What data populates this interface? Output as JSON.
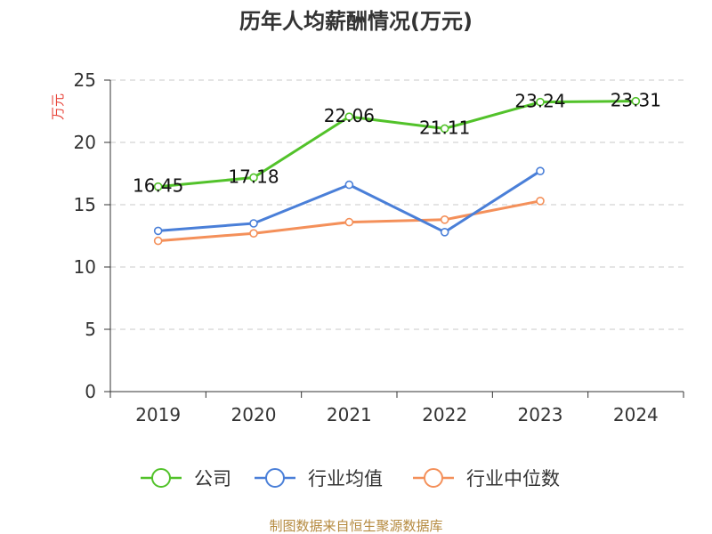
{
  "chart_data": {
    "type": "line",
    "title": "历年人均薪酬情况(万元)",
    "ylabel": "万元",
    "xlabel": "",
    "categories": [
      "2019",
      "2020",
      "2021",
      "2022",
      "2023",
      "2024"
    ],
    "ylim": [
      0,
      25
    ],
    "yticks": [
      0,
      5,
      10,
      15,
      20,
      25
    ],
    "grid": true,
    "legend_position": "bottom",
    "series": [
      {
        "name": "公司",
        "color": "#52c22a",
        "values": [
          16.45,
          17.18,
          22.06,
          21.11,
          23.24,
          23.31
        ],
        "labels": [
          "16.45",
          "17.18",
          "22.06",
          "21.11",
          "23.24",
          "23.31"
        ]
      },
      {
        "name": "行业均值",
        "color": "#4a7fd8",
        "values": [
          12.9,
          13.5,
          16.6,
          12.8,
          17.7,
          null
        ]
      },
      {
        "name": "行业中位数",
        "color": "#f4905a",
        "values": [
          12.1,
          12.7,
          13.6,
          13.8,
          15.3,
          null
        ]
      }
    ]
  },
  "footer": {
    "source": "制图数据来自恒生聚源数据库"
  }
}
